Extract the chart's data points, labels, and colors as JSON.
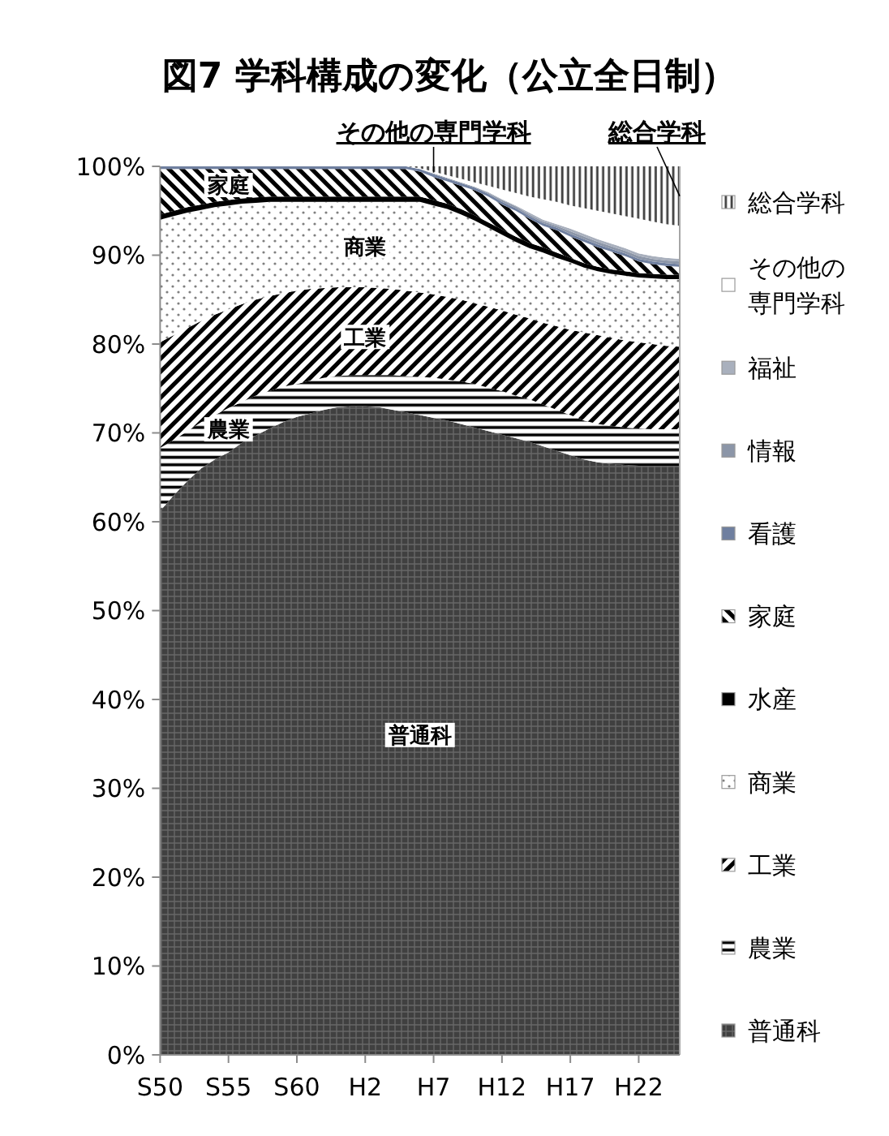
{
  "chart_data": {
    "type": "area",
    "title": "図7 学科構成の変化（公立全日制）",
    "stacked": true,
    "legend": "right",
    "categories": [
      "S50",
      null,
      null,
      null,
      null,
      "S55",
      null,
      null,
      null,
      null,
      "S60",
      null,
      null,
      null,
      null,
      "H2",
      null,
      null,
      null,
      null,
      "H7",
      null,
      null,
      null,
      null,
      "H12",
      null,
      null,
      null,
      null,
      "H17",
      null,
      null,
      null,
      null,
      "H22",
      null,
      null,
      null
    ],
    "ylim": [
      0,
      100
    ],
    "yticks": [
      {
        "value": 0,
        "label": "0%"
      },
      {
        "value": 10,
        "label": "10%"
      },
      {
        "value": 20,
        "label": "20%"
      },
      {
        "value": 30,
        "label": "30%"
      },
      {
        "value": 40,
        "label": "40%"
      },
      {
        "value": 50,
        "label": "50%"
      },
      {
        "value": 60,
        "label": "60%"
      },
      {
        "value": 70,
        "label": "70%"
      },
      {
        "value": 80,
        "label": "80%"
      },
      {
        "value": 90,
        "label": "90%"
      },
      {
        "value": 100,
        "label": "100%"
      }
    ],
    "series": [
      {
        "name": "普通科",
        "color": "#404040",
        "values": [
          61.2,
          63.0,
          64.6,
          66.0,
          67.0,
          67.8,
          68.9,
          69.7,
          70.5,
          71.2,
          71.8,
          72.2,
          72.6,
          72.9,
          73.0,
          73.0,
          72.9,
          72.6,
          72.3,
          72.0,
          71.7,
          71.4,
          71.0,
          70.6,
          70.2,
          69.8,
          69.4,
          69.0,
          68.5,
          68.0,
          67.5,
          67.0,
          66.7,
          66.5,
          66.4,
          66.3,
          66.3,
          66.3,
          66.3
        ]
      },
      {
        "name": "農業",
        "color": "#000000",
        "values": [
          7.1,
          6.2,
          5.6,
          5.2,
          5.0,
          5.0,
          4.6,
          4.5,
          4.2,
          4.0,
          3.7,
          3.7,
          3.6,
          3.5,
          3.5,
          3.5,
          3.6,
          3.9,
          4.1,
          4.3,
          4.5,
          4.6,
          4.8,
          4.9,
          4.9,
          4.9,
          4.8,
          4.8,
          4.7,
          4.6,
          4.5,
          4.4,
          4.3,
          4.3,
          4.2,
          4.2,
          4.1,
          4.1,
          4.1
        ]
      },
      {
        "name": "工業",
        "color": "#000000",
        "values": [
          11.9,
          11.8,
          11.6,
          11.4,
          11.3,
          11.1,
          11.0,
          10.8,
          10.7,
          10.5,
          10.5,
          10.3,
          10.1,
          10.0,
          9.9,
          9.9,
          9.8,
          9.7,
          9.6,
          9.5,
          9.4,
          9.3,
          9.2,
          9.1,
          9.1,
          9.1,
          9.1,
          9.1,
          9.2,
          9.4,
          9.6,
          9.9,
          10.0,
          9.9,
          9.8,
          9.7,
          9.6,
          9.4,
          9.3
        ]
      },
      {
        "name": "商業",
        "color": "#7f7f7f",
        "values": [
          13.8,
          13.4,
          13.0,
          12.5,
          12.1,
          11.7,
          11.3,
          10.9,
          10.6,
          10.3,
          10.0,
          9.8,
          9.7,
          9.6,
          9.6,
          9.6,
          9.7,
          9.8,
          10.0,
          10.2,
          10.0,
          9.9,
          9.6,
          9.3,
          8.9,
          8.5,
          8.2,
          7.9,
          7.9,
          7.7,
          7.6,
          7.3,
          7.2,
          7.2,
          7.3,
          7.3,
          7.4,
          7.5,
          7.6
        ]
      },
      {
        "name": "水産",
        "color": "#000000",
        "values": [
          0.6,
          0.6,
          0.6,
          0.6,
          0.6,
          0.6,
          0.6,
          0.6,
          0.6,
          0.6,
          0.6,
          0.6,
          0.6,
          0.6,
          0.6,
          0.6,
          0.6,
          0.6,
          0.6,
          0.6,
          0.6,
          0.6,
          0.6,
          0.6,
          0.6,
          0.6,
          0.6,
          0.6,
          0.6,
          0.6,
          0.5,
          0.5,
          0.5,
          0.5,
          0.5,
          0.5,
          0.5,
          0.5,
          0.5
        ]
      },
      {
        "name": "家庭",
        "color": "#000000",
        "values": [
          5.1,
          4.7,
          4.3,
          4.0,
          3.7,
          3.5,
          3.3,
          3.2,
          3.1,
          3.1,
          3.1,
          3.1,
          3.1,
          3.1,
          3.1,
          3.1,
          3.1,
          3.1,
          3.1,
          2.8,
          2.6,
          2.5,
          2.6,
          2.8,
          2.9,
          2.8,
          2.9,
          2.7,
          2.4,
          2.5,
          2.4,
          2.4,
          2.2,
          2.0,
          1.7,
          1.3,
          1.1,
          1.0,
          0.9
        ]
      },
      {
        "name": "看護",
        "color": "#6f7f9f",
        "values": [
          0.3,
          0.3,
          0.3,
          0.3,
          0.3,
          0.3,
          0.3,
          0.3,
          0.3,
          0.3,
          0.3,
          0.3,
          0.3,
          0.3,
          0.3,
          0.3,
          0.3,
          0.3,
          0.3,
          0.3,
          0.3,
          0.3,
          0.3,
          0.3,
          0.3,
          0.3,
          0.3,
          0.3,
          0.3,
          0.3,
          0.3,
          0.3,
          0.3,
          0.3,
          0.3,
          0.3,
          0.3,
          0.3,
          0.3
        ]
      },
      {
        "name": "情報",
        "color": "#8c96a8",
        "values": [
          0,
          0,
          0,
          0,
          0,
          0,
          0,
          0,
          0,
          0,
          0,
          0,
          0,
          0,
          0,
          0,
          0,
          0,
          0,
          0,
          0.1,
          0.1,
          0.1,
          0.1,
          0.1,
          0.2,
          0.2,
          0.2,
          0.2,
          0.2,
          0.3,
          0.3,
          0.3,
          0.3,
          0.3,
          0.3,
          0.3,
          0.3,
          0.3
        ]
      },
      {
        "name": "福祉",
        "color": "#a9b0bd",
        "values": [
          0,
          0,
          0,
          0,
          0,
          0,
          0,
          0,
          0,
          0,
          0,
          0,
          0,
          0,
          0,
          0,
          0,
          0,
          0,
          0,
          0,
          0,
          0,
          0,
          0.1,
          0.1,
          0.1,
          0.2,
          0.2,
          0.2,
          0.3,
          0.3,
          0.3,
          0.3,
          0.3,
          0.3,
          0.3,
          0.3,
          0.3
        ]
      },
      {
        "name": "その他の専門学科",
        "color": "#ffffff",
        "values": [
          0,
          0,
          0,
          0,
          0,
          0,
          0,
          0,
          0,
          0,
          0,
          0,
          0,
          0,
          0,
          0,
          0,
          0,
          0,
          0.1,
          0.2,
          0.3,
          0.4,
          0.5,
          0.7,
          1.1,
          1.4,
          1.8,
          2.3,
          2.5,
          2.6,
          2.9,
          3.2,
          3.4,
          3.6,
          3.9,
          3.9,
          3.8,
          3.7
        ]
      },
      {
        "name": "総合学科",
        "color": "#404040",
        "values": [
          0,
          0,
          0,
          0,
          0,
          0,
          0,
          0,
          0,
          0,
          0,
          0,
          0,
          0,
          0,
          0,
          0,
          0,
          0,
          0.2,
          0.6,
          1.0,
          1.4,
          1.8,
          2.2,
          2.6,
          3.0,
          3.4,
          3.7,
          4.0,
          4.4,
          4.7,
          5.0,
          5.3,
          5.6,
          5.9,
          6.2,
          6.5,
          6.7
        ]
      }
    ],
    "annotations": [
      {
        "text": "家庭",
        "x": "S55",
        "y": 97.9
      },
      {
        "text": "農業",
        "x": "S55",
        "y": 70.4
      },
      {
        "text": "工業",
        "x": "H2",
        "y": 80.8
      },
      {
        "text": "商業",
        "x": "H2",
        "y": 91
      },
      "普通科",
      {
        "text": "その他の専門学科",
        "x": "H7",
        "y": 99.3
      },
      "総合学科"
    ]
  }
}
